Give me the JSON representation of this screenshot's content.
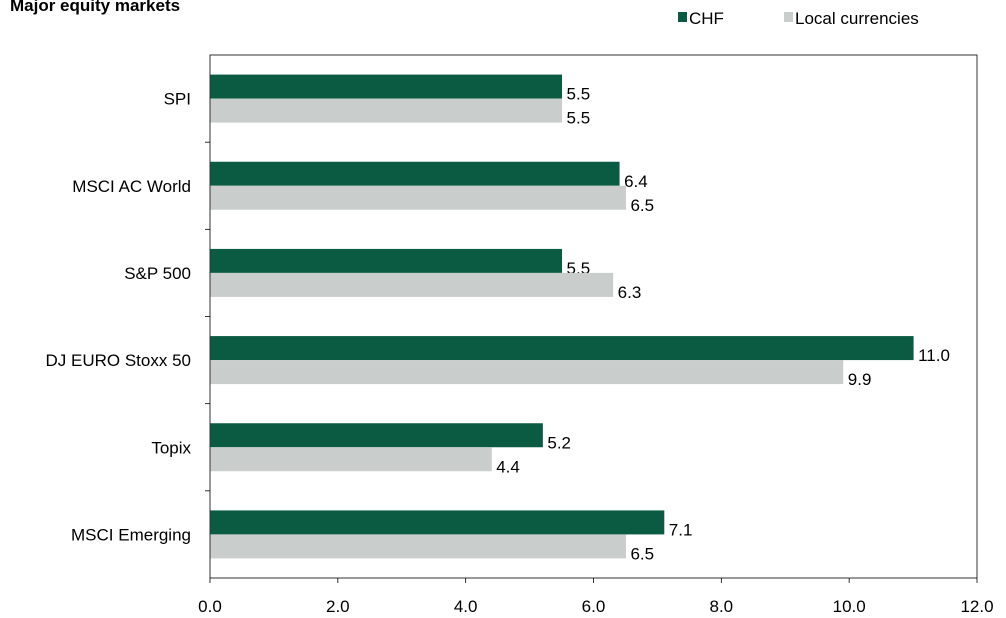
{
  "chart_data": {
    "type": "bar",
    "orientation": "horizontal",
    "title": "Major equity markets",
    "categories": [
      "SPI",
      "MSCI AC World",
      "S&P 500",
      "DJ EURO Stoxx 50",
      "Topix",
      "MSCI Emerging"
    ],
    "series": [
      {
        "name": "CHF",
        "color": "#0b5a42",
        "values": [
          5.5,
          6.4,
          5.5,
          11.0,
          5.2,
          7.1
        ]
      },
      {
        "name": "Local currencies",
        "color": "#c9cdcc",
        "values": [
          5.5,
          6.5,
          6.3,
          9.9,
          4.4,
          6.5
        ]
      }
    ],
    "xlim": [
      0,
      12
    ],
    "xticks": [
      "0.0",
      "2.0",
      "4.0",
      "6.0",
      "8.0",
      "10.0",
      "12.0"
    ],
    "legend_position": "top-right",
    "grid": false
  }
}
